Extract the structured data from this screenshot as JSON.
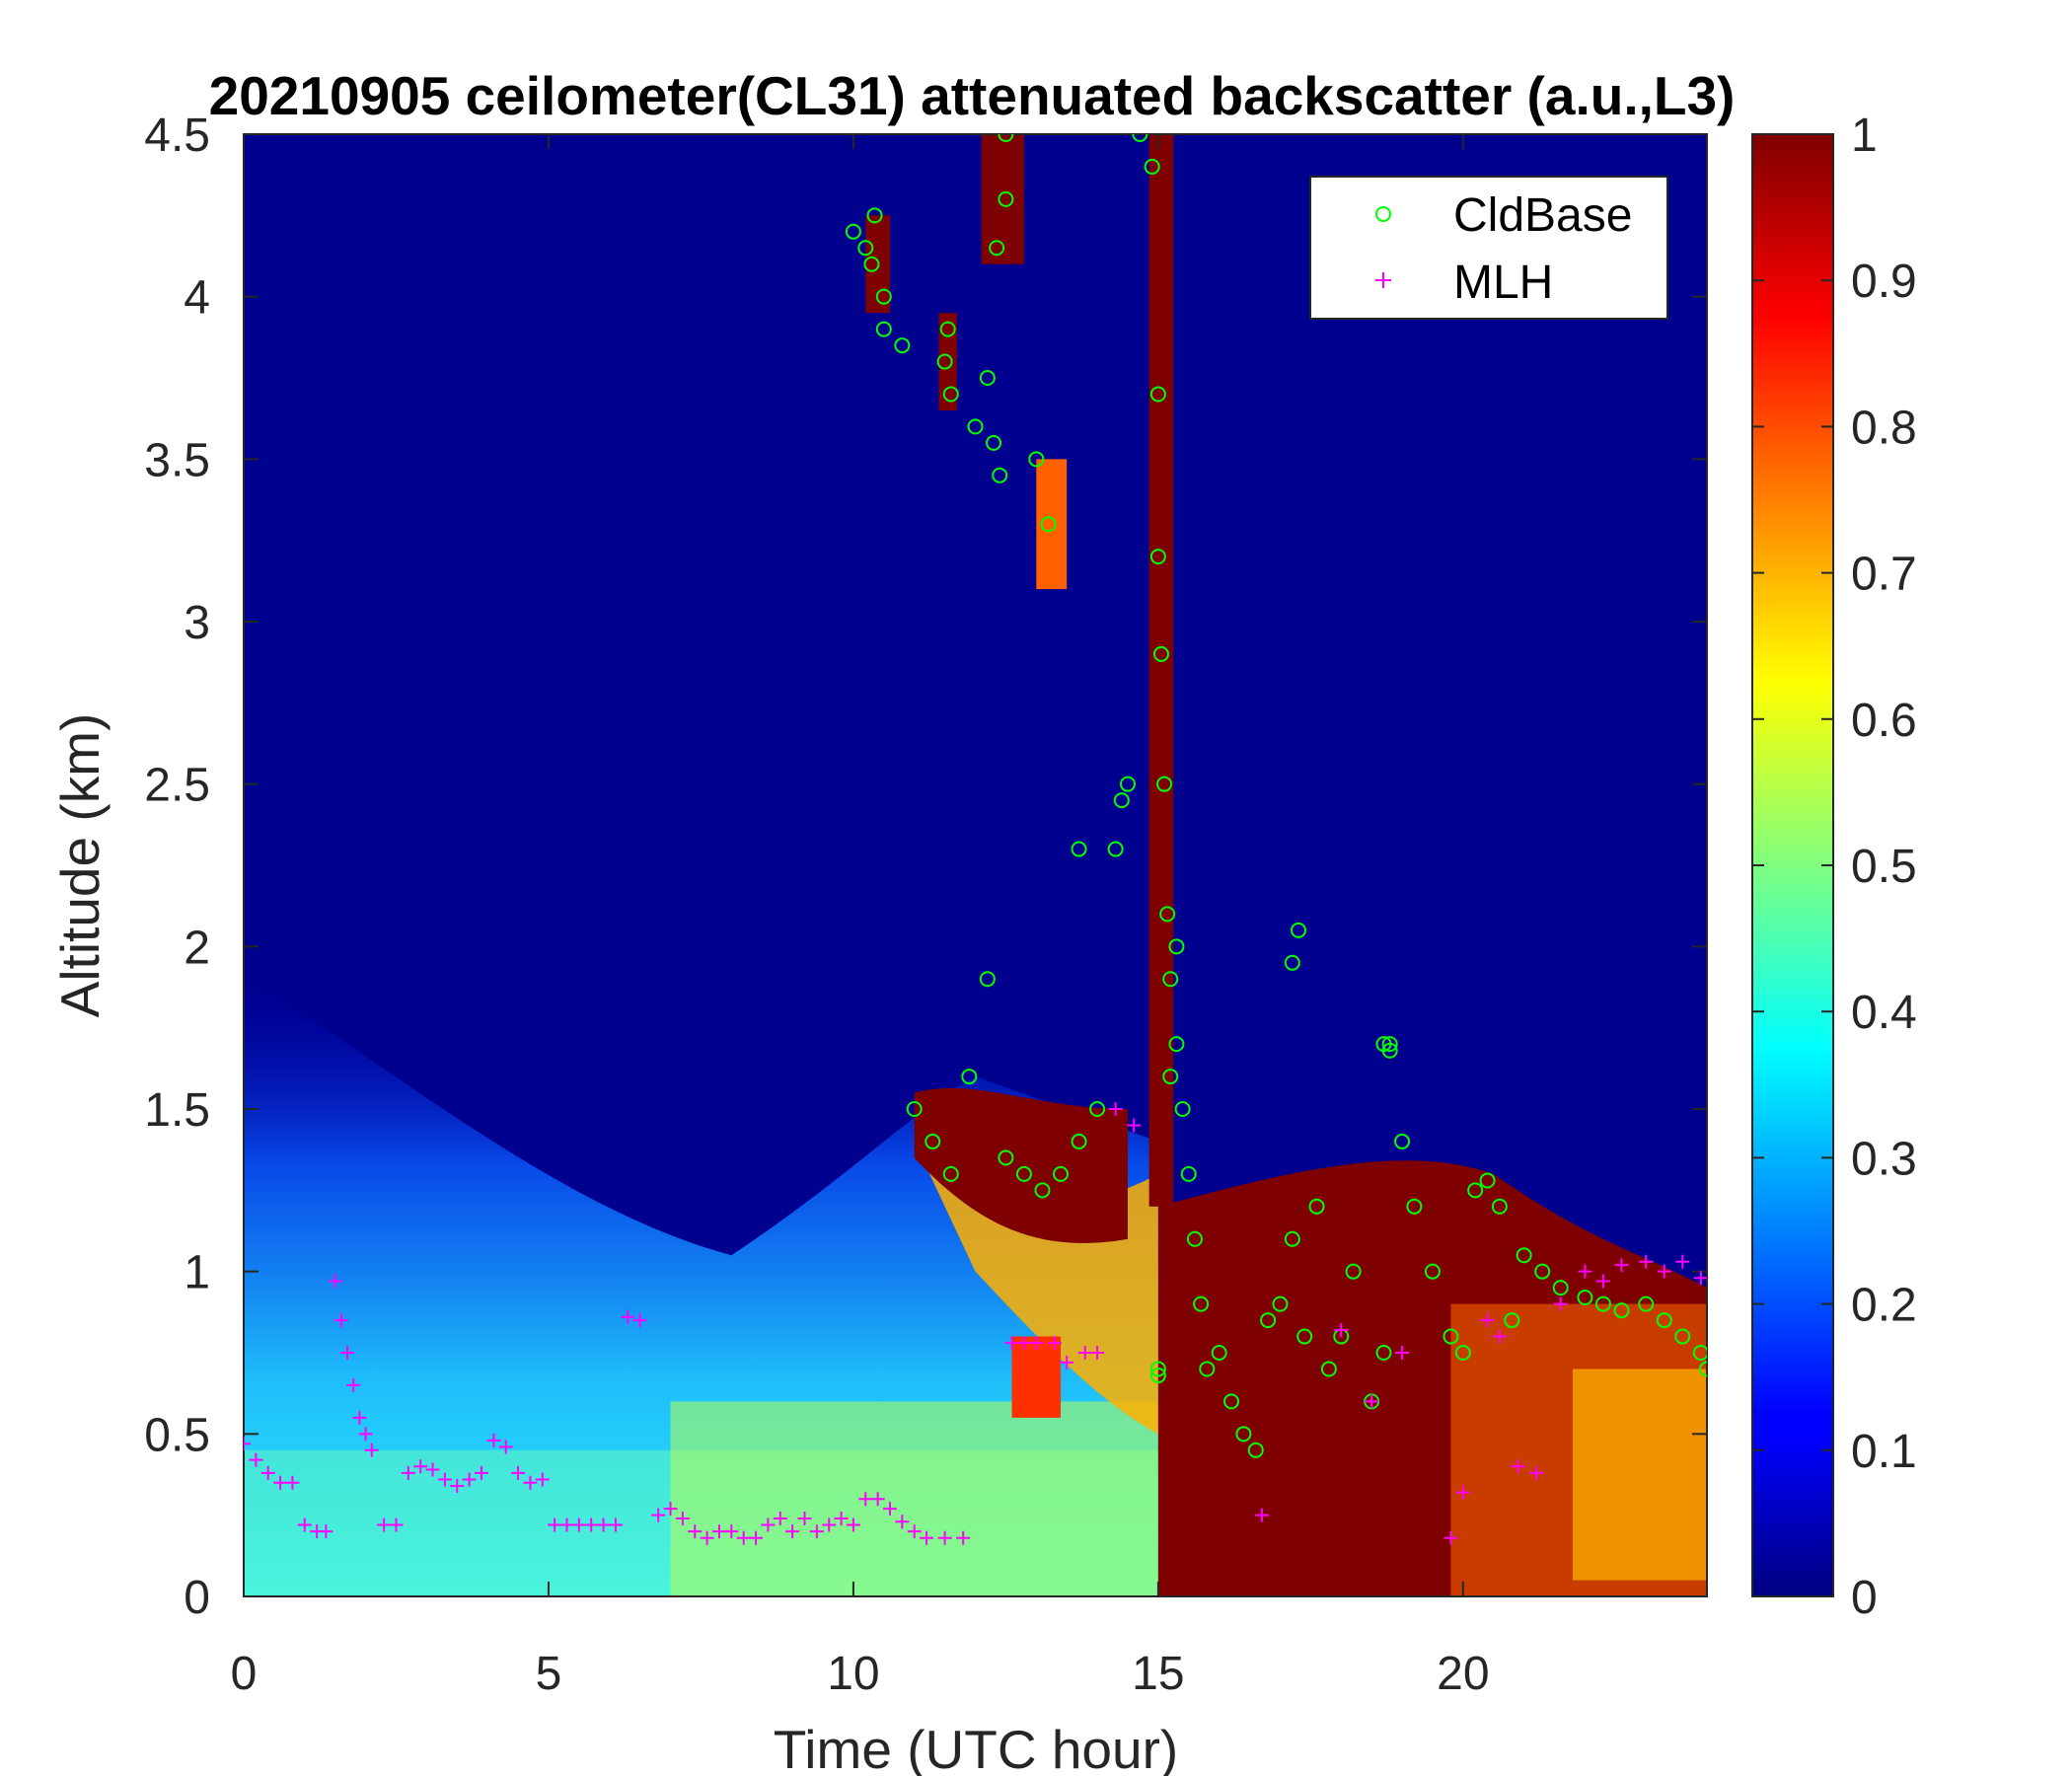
{
  "chart_data": {
    "type": "heatmap",
    "title": "20210905 ceilometer(CL31) attenuated backscatter (a.u.,L3)",
    "xlabel": "Time (UTC hour)",
    "ylabel": "Altitude (km)",
    "xlim": [
      0,
      24
    ],
    "ylim": [
      0,
      4.5
    ],
    "xticks": [
      "0",
      "5",
      "10",
      "15",
      "20"
    ],
    "xtick_values": [
      0,
      5,
      10,
      15,
      20
    ],
    "yticks": [
      "0",
      "0.5",
      "1",
      "1.5",
      "2",
      "2.5",
      "3",
      "3.5",
      "4",
      "4.5"
    ],
    "ytick_values": [
      0,
      0.5,
      1,
      1.5,
      2,
      2.5,
      3,
      3.5,
      4,
      4.5
    ],
    "colorbar": {
      "colormap": "jet",
      "range": [
        0,
        1
      ],
      "ticks": [
        "0",
        "0.1",
        "0.2",
        "0.3",
        "0.4",
        "0.5",
        "0.6",
        "0.7",
        "0.8",
        "0.9",
        "1"
      ],
      "tick_values": [
        0,
        0.1,
        0.2,
        0.3,
        0.4,
        0.5,
        0.6,
        0.7,
        0.8,
        0.9,
        1
      ]
    },
    "legend": {
      "placement": "top-right",
      "entries": [
        {
          "label": "CldBase",
          "marker": "circle",
          "color": "#00ff00"
        },
        {
          "label": "MLH",
          "marker": "plus",
          "color": "#ff00ff"
        }
      ]
    },
    "series": [
      {
        "name": "CldBase",
        "marker": "circle",
        "color": "#00ff00",
        "x": [
          10.0,
          10.2,
          10.3,
          10.35,
          10.5,
          10.5,
          10.8,
          11.5,
          11.55,
          11.6,
          12.0,
          12.2,
          12.3,
          12.4,
          12.5,
          12.5,
          12.35,
          13.2,
          13.0,
          13.7,
          14.3,
          14.4,
          14.5,
          14.7,
          14.9,
          15.0,
          15.0,
          15.05,
          15.1,
          15.15,
          15.2,
          15.2,
          15.3,
          15.3,
          15.4,
          15.5,
          15.6,
          15.7,
          15.8,
          16.0,
          16.2,
          16.4,
          16.6,
          16.8,
          17.0,
          17.2,
          17.4,
          17.6,
          17.8,
          18.0,
          18.2,
          18.5,
          18.7,
          18.8,
          19.0,
          19.2,
          19.5,
          19.8,
          20.0,
          20.2,
          20.4,
          20.6,
          20.8,
          21.0,
          21.3,
          21.6,
          22.0,
          22.3,
          22.6,
          23.0,
          23.3,
          23.6,
          23.9,
          24.0,
          11.0,
          11.3,
          11.6,
          11.9,
          12.2,
          12.5,
          12.8,
          13.1,
          13.4,
          13.7,
          14.0,
          17.2,
          17.3,
          18.7,
          18.8,
          15.0,
          15.0
        ],
        "y": [
          4.2,
          4.15,
          4.1,
          4.25,
          4.0,
          3.9,
          3.85,
          3.8,
          3.9,
          3.7,
          3.6,
          3.75,
          3.55,
          3.45,
          4.3,
          4.5,
          4.15,
          3.3,
          3.5,
          2.3,
          2.3,
          2.45,
          2.5,
          4.5,
          4.4,
          3.7,
          3.2,
          2.9,
          2.5,
          2.1,
          1.9,
          1.6,
          1.7,
          2.0,
          1.5,
          1.3,
          1.1,
          0.9,
          0.7,
          0.75,
          0.6,
          0.5,
          0.45,
          0.85,
          0.9,
          1.1,
          0.8,
          1.2,
          0.7,
          0.8,
          1.0,
          0.6,
          0.75,
          1.7,
          1.4,
          1.2,
          1.0,
          0.8,
          0.75,
          1.25,
          1.28,
          1.2,
          0.85,
          1.05,
          1.0,
          0.95,
          0.92,
          0.9,
          0.88,
          0.9,
          0.85,
          0.8,
          0.75,
          0.7,
          1.5,
          1.4,
          1.3,
          1.6,
          1.9,
          1.35,
          1.3,
          1.25,
          1.3,
          1.4,
          1.5,
          1.95,
          2.05,
          1.7,
          1.68,
          0.7,
          0.68
        ]
      },
      {
        "name": "MLH",
        "marker": "plus",
        "color": "#ff00ff",
        "x": [
          0.0,
          0.2,
          0.4,
          0.6,
          0.8,
          1.0,
          1.2,
          1.35,
          1.5,
          1.6,
          1.7,
          1.8,
          1.9,
          2.0,
          2.1,
          2.3,
          2.5,
          2.7,
          2.9,
          3.1,
          3.3,
          3.5,
          3.7,
          3.9,
          4.1,
          4.3,
          4.5,
          4.7,
          4.9,
          5.1,
          5.3,
          5.5,
          5.7,
          5.9,
          6.1,
          6.3,
          6.5,
          6.8,
          7.0,
          7.2,
          7.4,
          7.6,
          7.8,
          8.0,
          8.2,
          8.4,
          8.6,
          8.8,
          9.0,
          9.2,
          9.4,
          9.6,
          9.8,
          10.0,
          10.2,
          10.4,
          10.6,
          10.8,
          11.0,
          11.2,
          11.5,
          11.8,
          12.6,
          12.8,
          13.0,
          13.3,
          13.5,
          13.8,
          14.0,
          14.3,
          14.6,
          16.7,
          18.0,
          18.5,
          19.0,
          19.8,
          20.0,
          20.4,
          20.6,
          20.9,
          21.2,
          21.6,
          22.0,
          22.3,
          22.6,
          23.0,
          23.3,
          23.6,
          23.9
        ],
        "y": [
          0.47,
          0.42,
          0.38,
          0.35,
          0.35,
          0.22,
          0.2,
          0.2,
          0.97,
          0.85,
          0.75,
          0.65,
          0.55,
          0.5,
          0.45,
          0.22,
          0.22,
          0.38,
          0.4,
          0.39,
          0.36,
          0.34,
          0.36,
          0.38,
          0.48,
          0.46,
          0.38,
          0.35,
          0.36,
          0.22,
          0.22,
          0.22,
          0.22,
          0.22,
          0.22,
          0.86,
          0.85,
          0.25,
          0.27,
          0.24,
          0.2,
          0.18,
          0.2,
          0.2,
          0.18,
          0.18,
          0.22,
          0.24,
          0.2,
          0.24,
          0.2,
          0.22,
          0.24,
          0.22,
          0.3,
          0.3,
          0.27,
          0.23,
          0.2,
          0.18,
          0.18,
          0.18,
          0.78,
          0.78,
          0.78,
          0.78,
          0.72,
          0.75,
          0.75,
          1.5,
          1.45,
          0.25,
          0.82,
          0.6,
          0.75,
          0.18,
          0.32,
          0.85,
          0.8,
          0.4,
          0.38,
          0.9,
          1.0,
          0.97,
          1.02,
          1.03,
          1.0,
          1.03,
          0.98
        ]
      }
    ]
  }
}
